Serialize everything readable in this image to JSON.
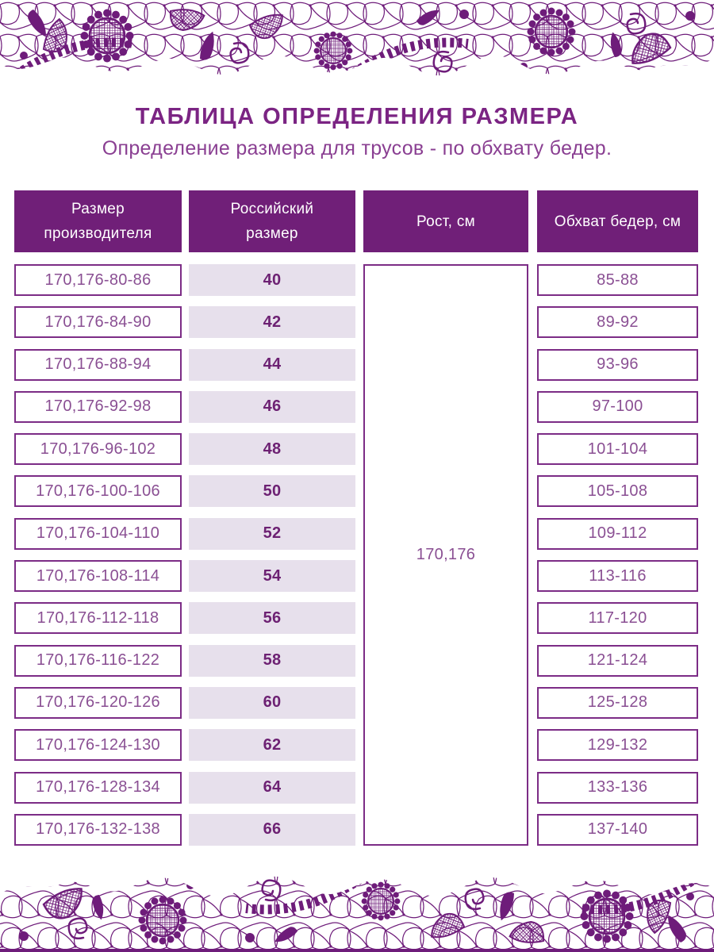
{
  "page": {
    "title": "ТАБЛИЦА ОПРЕДЕЛЕНИЯ РАЗМЕРА",
    "subtitle": "Определение размера для трусов - по обхвату бедер."
  },
  "table": {
    "headers": {
      "manufacturer_line1": "Размер",
      "manufacturer_line2": "производителя",
      "russian_line1": "Российский",
      "russian_line2": "размер",
      "height": "Рост, см",
      "hips": "Обхват бедер, см"
    },
    "height_value": "170,176",
    "rows": [
      {
        "manufacturer": "170,176-80-86",
        "russian": "40",
        "hips": "85-88"
      },
      {
        "manufacturer": "170,176-84-90",
        "russian": "42",
        "hips": "89-92"
      },
      {
        "manufacturer": "170,176-88-94",
        "russian": "44",
        "hips": "93-96"
      },
      {
        "manufacturer": "170,176-92-98",
        "russian": "46",
        "hips": "97-100"
      },
      {
        "manufacturer": "170,176-96-102",
        "russian": "48",
        "hips": "101-104"
      },
      {
        "manufacturer": "170,176-100-106",
        "russian": "50",
        "hips": "105-108"
      },
      {
        "manufacturer": "170,176-104-110",
        "russian": "52",
        "hips": "109-112"
      },
      {
        "manufacturer": "170,176-108-114",
        "russian": "54",
        "hips": "113-116"
      },
      {
        "manufacturer": "170,176-112-118",
        "russian": "56",
        "hips": "117-120"
      },
      {
        "manufacturer": "170,176-116-122",
        "russian": "58",
        "hips": "121-124"
      },
      {
        "manufacturer": "170,176-120-126",
        "russian": "60",
        "hips": "125-128"
      },
      {
        "manufacturer": "170,176-124-130",
        "russian": "62",
        "hips": "129-132"
      },
      {
        "manufacturer": "170,176-128-134",
        "russian": "64",
        "hips": "133-136"
      },
      {
        "manufacturer": "170,176-132-138",
        "russian": "66",
        "hips": "137-140"
      }
    ]
  },
  "decoration": {
    "top_border": "lace-ornament",
    "bottom_border": "lace-ornament"
  },
  "colors": {
    "header_bg": "#701f78",
    "lace_purple": "#6e1c7a",
    "cell_border": "#7c2c86",
    "shaded_row_bg": "#e7e0ec",
    "cell_text": "#8a4f93",
    "bold_text": "#6d2173",
    "title_text": "#7b2483",
    "subtitle_text": "#8a3f92"
  }
}
